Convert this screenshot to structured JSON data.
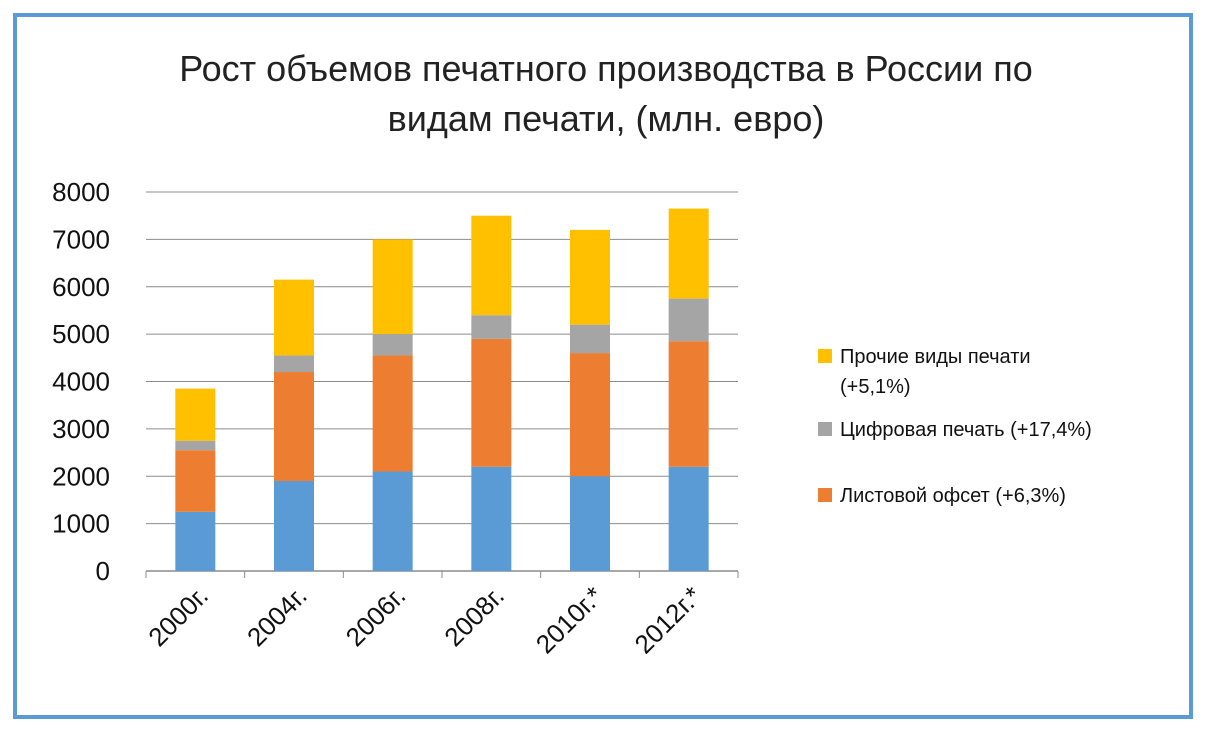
{
  "chart_data": {
    "type": "bar",
    "stacked": true,
    "title_lines": [
      "Рост объемов печатного производства в России по",
      "видам печати, (млн. евро)"
    ],
    "categories": [
      "2000г.",
      "2004г.",
      "2006г.",
      "2008г.",
      "2010г.*",
      "2012г.*"
    ],
    "series": [
      {
        "values": [
          1250,
          1900,
          2100,
          2200,
          2000,
          2200
        ],
        "color": "#5b9bd5",
        "legend": false
      },
      {
        "name": "Листовой офсет (+6,3%)",
        "values": [
          1300,
          2300,
          2450,
          2700,
          2600,
          2650
        ],
        "color": "#ed7d31",
        "legend": true
      },
      {
        "name": "Цифровая печать (+17,4%)",
        "values": [
          200,
          350,
          450,
          500,
          600,
          900
        ],
        "color": "#a5a5a5",
        "legend": true
      },
      {
        "name": "Прочие виды печати (+5,1%)",
        "values": [
          1100,
          1600,
          2000,
          2100,
          2000,
          1900
        ],
        "color": "#ffc000",
        "legend": true
      }
    ],
    "legend_entries": [
      {
        "lines": [
          "Прочие виды печати",
          "(+5,1%)"
        ],
        "color": "#ffc000"
      },
      {
        "lines": [
          "Цифровая печать (+17,4%)"
        ],
        "color": "#a5a5a5"
      },
      {
        "lines": [
          "Листовой офсет (+6,3%)"
        ],
        "color": "#ed7d31"
      }
    ],
    "ylim": [
      0,
      8000
    ],
    "yticks": [
      0,
      1000,
      2000,
      3000,
      4000,
      5000,
      6000,
      7000,
      8000
    ],
    "grid": true,
    "legend_position": "right"
  }
}
